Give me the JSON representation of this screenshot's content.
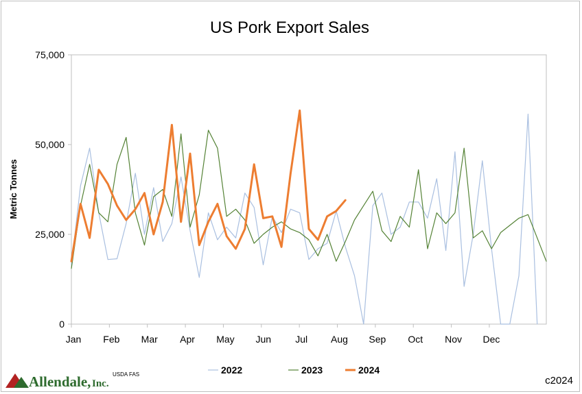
{
  "chart_data": {
    "type": "line",
    "title": "US Pork Export Sales",
    "ylabel": "Metric Tonnes",
    "xlabel": "",
    "ylim": [
      0,
      75000
    ],
    "yticks": [
      0,
      25000,
      50000,
      75000
    ],
    "ytick_labels": [
      "0",
      "25,000",
      "50,000",
      "75,000"
    ],
    "xlim": [
      1,
      53
    ],
    "x_tick_labels": [
      "Jan",
      "Feb",
      "Mar",
      "Apr",
      "May",
      "Jun",
      "Jul",
      "Aug",
      "Sep",
      "Oct",
      "Nov",
      "Dec"
    ],
    "x_unit": "week",
    "grid": false,
    "legend_position": "bottom",
    "series": [
      {
        "name": "2022",
        "color": "#a9bfe0",
        "width": 1.2,
        "x": [
          1,
          2,
          3,
          4,
          5,
          6,
          7,
          8,
          9,
          10,
          11,
          12,
          13,
          14,
          15,
          16,
          17,
          18,
          19,
          20,
          21,
          22,
          23,
          24,
          25,
          26,
          27,
          28,
          29,
          30,
          31,
          32,
          33,
          34,
          35,
          36,
          37,
          38,
          39,
          40,
          41,
          42,
          43,
          44,
          45,
          46,
          47,
          48,
          49,
          50,
          51,
          52
        ],
        "values": [
          16500,
          38500,
          49000,
          31000,
          18000,
          18200,
          28000,
          42000,
          25000,
          38000,
          23000,
          28000,
          41000,
          26000,
          13000,
          31000,
          23500,
          27000,
          24000,
          36500,
          32500,
          16500,
          30000,
          25500,
          32000,
          31000,
          18000,
          21000,
          22500,
          31500,
          21500,
          13500,
          0,
          33000,
          36500,
          25000,
          27000,
          34000,
          34000,
          29500,
          40500,
          20500,
          48000,
          10500,
          25000,
          45500,
          21000,
          0,
          0,
          13500,
          58500,
          0
        ]
      },
      {
        "name": "2023",
        "color": "#548235",
        "width": 1.2,
        "x": [
          1,
          2,
          3,
          4,
          5,
          6,
          7,
          8,
          9,
          10,
          11,
          12,
          13,
          14,
          15,
          16,
          17,
          18,
          19,
          20,
          21,
          22,
          23,
          24,
          25,
          26,
          27,
          28,
          29,
          30,
          31,
          32,
          33,
          34,
          35,
          36,
          37,
          38,
          39,
          40,
          41,
          42,
          43,
          44,
          45,
          46,
          47,
          48,
          49,
          50,
          51,
          52,
          53
        ],
        "values": [
          15500,
          33000,
          44500,
          31000,
          28500,
          44500,
          52000,
          31000,
          22000,
          35500,
          37500,
          30000,
          53000,
          27000,
          36000,
          54000,
          49000,
          30000,
          32000,
          29000,
          22500,
          25000,
          27000,
          28500,
          26500,
          25500,
          23500,
          19000,
          25000,
          17500,
          23000,
          29000,
          33000,
          37000,
          26000,
          23000,
          30000,
          27000,
          43000,
          21000,
          31000,
          28000,
          31000,
          49000,
          24000,
          26000,
          21000,
          25500,
          27500,
          29500,
          30500,
          24000,
          17500
        ]
      },
      {
        "name": "2024",
        "color": "#ed7d31",
        "width": 3,
        "x": [
          1,
          2,
          3,
          4,
          5,
          6,
          7,
          8,
          9,
          10,
          11,
          12,
          13,
          14,
          15,
          16,
          17,
          18,
          19,
          20,
          21,
          22,
          23,
          24,
          25,
          26,
          27,
          28,
          29,
          30,
          31,
          32
        ],
        "values": [
          17500,
          33500,
          24000,
          43000,
          39000,
          33000,
          29000,
          32000,
          36500,
          25000,
          34000,
          55500,
          28500,
          47500,
          22000,
          28500,
          33500,
          24500,
          21000,
          26500,
          44500,
          29500,
          30000,
          21500,
          42000,
          59500,
          26500,
          23500,
          30000,
          31500,
          34500,
          null
        ]
      }
    ]
  },
  "source_note": "USDA FAS",
  "copyright": "c2024",
  "brand": {
    "name": "Allendale,",
    "suffix": "Inc."
  }
}
